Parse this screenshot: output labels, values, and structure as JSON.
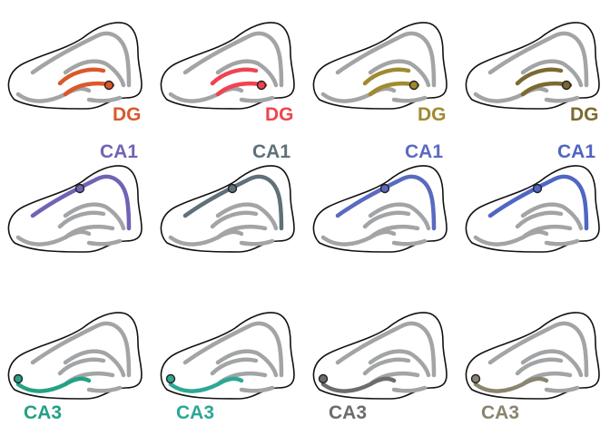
{
  "panels": [
    {
      "row": 0,
      "col": 0,
      "region": "DG",
      "label": "DG",
      "color": "#d9592b"
    },
    {
      "row": 0,
      "col": 1,
      "region": "DG",
      "label": "DG",
      "color": "#f0434f"
    },
    {
      "row": 0,
      "col": 2,
      "region": "DG",
      "label": "DG",
      "color": "#a08a2e"
    },
    {
      "row": 0,
      "col": 3,
      "region": "DG",
      "label": "DG",
      "color": "#7b6a30"
    },
    {
      "row": 1,
      "col": 0,
      "region": "CA1",
      "label": "CA1",
      "color": "#6e64b5"
    },
    {
      "row": 1,
      "col": 1,
      "region": "CA1",
      "label": "CA1",
      "color": "#5f7079"
    },
    {
      "row": 1,
      "col": 2,
      "region": "CA1",
      "label": "CA1",
      "color": "#5a6abf"
    },
    {
      "row": 1,
      "col": 3,
      "region": "CA1",
      "label": "CA1",
      "color": "#5066c3"
    },
    {
      "row": 2,
      "col": 0,
      "region": "CA3",
      "label": "CA3",
      "color": "#24a184"
    },
    {
      "row": 2,
      "col": 1,
      "region": "CA3",
      "label": "CA3",
      "color": "#2ca894"
    },
    {
      "row": 2,
      "col": 2,
      "region": "CA3",
      "label": "CA3",
      "color": "#6c6c6c"
    },
    {
      "row": 2,
      "col": 3,
      "region": "CA3",
      "label": "CA3",
      "color": "#8a8470"
    }
  ]
}
